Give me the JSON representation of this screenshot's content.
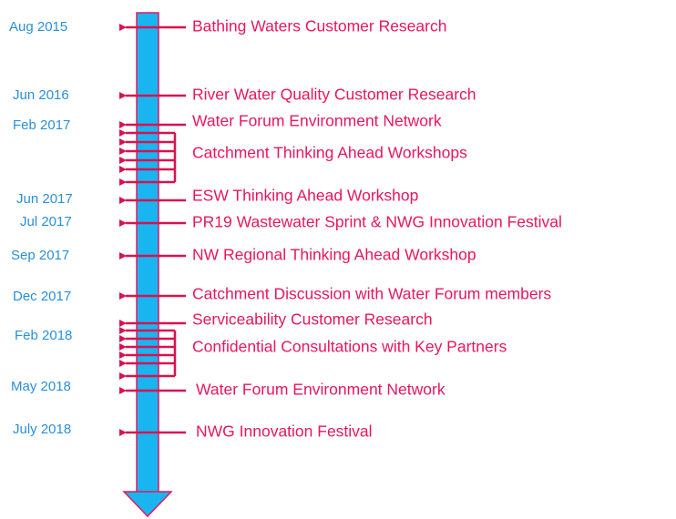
{
  "dates": [
    "Aug 2015",
    "Jun 2016",
    "Feb 2017",
    "Jun 2017",
    "Jul 2017",
    "Sep 2017",
    "Dec 2017",
    "Feb 2018",
    "May 2018",
    "July 2018"
  ],
  "events": [
    "Bathing Waters Customer Research",
    "River Water Quality Customer Research",
    "Water Forum Environment Network",
    "Catchment Thinking Ahead Workshops",
    "ESW Thinking Ahead Workshop",
    "PR19 Wastewater Sprint & NWG Innovation Festival",
    "NW Regional Thinking Ahead Workshop",
    "Catchment Discussion with Water Forum members",
    "Serviceability Customer Research",
    "Confidential Consultations with Key Partners",
    "Water Forum Environment Network",
    "NWG Innovation Festival"
  ]
}
